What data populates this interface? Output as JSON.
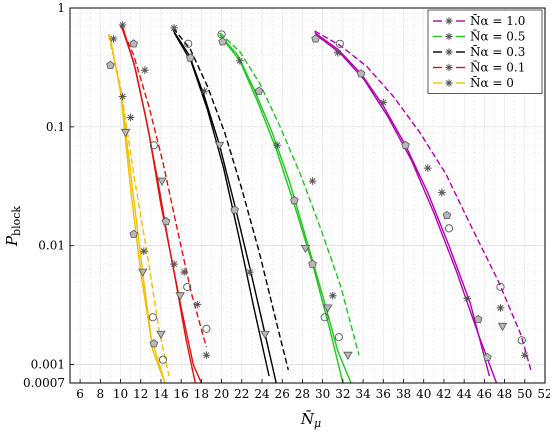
{
  "chart_data": {
    "type": "line",
    "xlabel": "N̄μ",
    "ylabel": "Pblock",
    "xscale": "linear",
    "yscale": "log",
    "xlim": [
      5,
      52
    ],
    "ylim": [
      0.0007,
      1
    ],
    "xticks": [
      "6",
      "8",
      "10",
      "12",
      "14",
      "16",
      "18",
      "20",
      "22",
      "24",
      "26",
      "28",
      "30",
      "32",
      "34",
      "36",
      "38",
      "40",
      "42",
      "44",
      "46",
      "48",
      "50",
      "52"
    ],
    "yticks": [
      "1",
      "0.1",
      "0.01",
      "0.001",
      "0.0007"
    ],
    "grid": true,
    "legend_position": "top-right",
    "legend": [
      {
        "label": "N̄α = 1.0",
        "color": "#b000b0"
      },
      {
        "label": "N̄α = 0.5",
        "color": "#22c422"
      },
      {
        "label": "N̄α = 0.3",
        "color": "#000000"
      },
      {
        "label": "N̄α = 0.1",
        "color": "#e01010"
      },
      {
        "label": "N̄α = 0",
        "color": "#f0c000"
      }
    ],
    "groups": [
      {
        "name": "N̄α = 0",
        "color": "#f0c000",
        "solid": [
          {
            "x": [
              8.9,
              10,
              11,
              12,
              13,
              14.4
            ],
            "y": [
              0.6,
              0.2,
              0.03,
              0.006,
              0.0017,
              0.0007
            ]
          },
          {
            "x": [
              9,
              10.1,
              11.3,
              12.3,
              13.2,
              14.4
            ],
            "y": [
              0.55,
              0.18,
              0.025,
              0.005,
              0.0013,
              0.0007
            ]
          }
        ],
        "dashed": [
          {
            "x": [
              8.8,
              10,
              11.3,
              12.6,
              13.8,
              14.8
            ],
            "y": [
              0.6,
              0.22,
              0.04,
              0.009,
              0.002,
              0.0008
            ]
          }
        ],
        "markers": [
          {
            "s": "square",
            "x": 9,
            "y": 0.33
          },
          {
            "s": "star",
            "x": 9.3,
            "y": 0.55
          },
          {
            "s": "star",
            "x": 10.2,
            "y": 0.18
          },
          {
            "s": "square",
            "x": 11.3,
            "y": 0.0125
          },
          {
            "s": "triangle",
            "x": 12.2,
            "y": 0.006
          },
          {
            "s": "star",
            "x": 12.3,
            "y": 0.009
          },
          {
            "s": "circle",
            "x": 13.2,
            "y": 0.0025
          },
          {
            "s": "square",
            "x": 13.3,
            "y": 0.0015
          },
          {
            "s": "triangle",
            "x": 14,
            "y": 0.0018
          },
          {
            "s": "circle",
            "x": 14.2,
            "y": 0.0011
          },
          {
            "s": "star",
            "x": 11,
            "y": 0.12
          },
          {
            "s": "triangle",
            "x": 10.5,
            "y": 0.09
          }
        ]
      },
      {
        "name": "N̄α = 0.1",
        "color": "#e01010",
        "solid": [
          {
            "x": [
              10.1,
              11.3,
              12.5,
              13.7,
              14.8,
              16,
              17.2,
              18
            ],
            "y": [
              0.7,
              0.35,
              0.12,
              0.035,
              0.01,
              0.003,
              0.001,
              0.0007
            ]
          },
          {
            "x": [
              10.2,
              11.5,
              12.8,
              14,
              15.3,
              16.5,
              17.4
            ],
            "y": [
              0.7,
              0.3,
              0.09,
              0.022,
              0.006,
              0.0016,
              0.0007
            ]
          }
        ],
        "dashed": [
          {
            "x": [
              10,
              11.3,
              12.8,
              14.2,
              15.6,
              17,
              18.5
            ],
            "y": [
              0.72,
              0.4,
              0.15,
              0.05,
              0.014,
              0.004,
              0.0014
            ]
          }
        ],
        "markers": [
          {
            "s": "star",
            "x": 10.2,
            "y": 0.72
          },
          {
            "s": "square",
            "x": 11.3,
            "y": 0.5
          },
          {
            "s": "star",
            "x": 12.4,
            "y": 0.3
          },
          {
            "s": "circle",
            "x": 13.3,
            "y": 0.07
          },
          {
            "s": "triangle",
            "x": 14.1,
            "y": 0.035
          },
          {
            "s": "square",
            "x": 14.5,
            "y": 0.016
          },
          {
            "s": "star",
            "x": 15.3,
            "y": 0.007
          },
          {
            "s": "triangle",
            "x": 15.9,
            "y": 0.0038
          },
          {
            "s": "star",
            "x": 16.3,
            "y": 0.006
          },
          {
            "s": "circle",
            "x": 16.6,
            "y": 0.0045
          },
          {
            "s": "star",
            "x": 17.6,
            "y": 0.0032
          },
          {
            "s": "circle",
            "x": 18.5,
            "y": 0.002
          },
          {
            "s": "star",
            "x": 18.5,
            "y": 0.0012
          }
        ]
      },
      {
        "name": "N̄α = 0.3",
        "color": "#000000",
        "solid": [
          {
            "x": [
              15.2,
              16.8,
              18.3,
              19.8,
              21.3,
              22.8,
              24.3,
              25.4
            ],
            "y": [
              0.65,
              0.4,
              0.18,
              0.07,
              0.022,
              0.0065,
              0.0018,
              0.0007
            ]
          },
          {
            "x": [
              15.3,
              17,
              18.6,
              20.2,
              21.7,
              23.2,
              24.7
            ],
            "y": [
              0.62,
              0.35,
              0.14,
              0.045,
              0.012,
              0.003,
              0.0008
            ]
          }
        ],
        "dashed": [
          {
            "x": [
              15.2,
              16.9,
              18.6,
              20.3,
              22,
              23.7,
              25.3,
              26.6
            ],
            "y": [
              0.68,
              0.45,
              0.22,
              0.09,
              0.03,
              0.009,
              0.0025,
              0.0009
            ]
          }
        ],
        "markers": [
          {
            "s": "star",
            "x": 15.3,
            "y": 0.68
          },
          {
            "s": "circle",
            "x": 16.7,
            "y": 0.5
          },
          {
            "s": "square",
            "x": 16.9,
            "y": 0.38
          },
          {
            "s": "star",
            "x": 18.3,
            "y": 0.2
          },
          {
            "s": "triangle",
            "x": 19.8,
            "y": 0.07
          },
          {
            "s": "square",
            "x": 21.3,
            "y": 0.02
          },
          {
            "s": "star",
            "x": 22.8,
            "y": 0.006
          },
          {
            "s": "triangle",
            "x": 24.3,
            "y": 0.0018
          }
        ]
      },
      {
        "name": "N̄α = 0.5",
        "color": "#22c422",
        "solid": [
          {
            "x": [
              19.8,
              21.6,
              23.3,
              25,
              26.7,
              28.3,
              30,
              31.5,
              32.8
            ],
            "y": [
              0.6,
              0.4,
              0.2,
              0.09,
              0.035,
              0.012,
              0.0038,
              0.0013,
              0.0007
            ]
          },
          {
            "x": [
              19.9,
              21.8,
              23.6,
              25.4,
              27.2,
              29,
              30.7,
              32
            ],
            "y": [
              0.58,
              0.36,
              0.16,
              0.065,
              0.022,
              0.007,
              0.002,
              0.0007
            ]
          }
        ],
        "dashed": [
          {
            "x": [
              19.8,
              21.8,
              23.8,
              25.8,
              27.8,
              29.8,
              31.8,
              33.6
            ],
            "y": [
              0.62,
              0.43,
              0.23,
              0.1,
              0.04,
              0.014,
              0.0045,
              0.0012
            ]
          }
        ],
        "markers": [
          {
            "s": "circle",
            "x": 20,
            "y": 0.6
          },
          {
            "s": "square",
            "x": 20.1,
            "y": 0.52
          },
          {
            "s": "star",
            "x": 21.8,
            "y": 0.36
          },
          {
            "s": "square",
            "x": 23.7,
            "y": 0.2
          },
          {
            "s": "star",
            "x": 25.5,
            "y": 0.07
          },
          {
            "s": "square",
            "x": 27.2,
            "y": 0.024
          },
          {
            "s": "star",
            "x": 29,
            "y": 0.035
          },
          {
            "s": "triangle",
            "x": 28.3,
            "y": 0.0095
          },
          {
            "s": "square",
            "x": 29,
            "y": 0.007
          },
          {
            "s": "triangle",
            "x": 30.5,
            "y": 0.003
          },
          {
            "s": "circle",
            "x": 30.2,
            "y": 0.0025
          },
          {
            "s": "star",
            "x": 31,
            "y": 0.0038
          },
          {
            "s": "circle",
            "x": 31.6,
            "y": 0.0017
          },
          {
            "s": "triangle",
            "x": 32.5,
            "y": 0.0012
          }
        ]
      },
      {
        "name": "N̄α = 1.0",
        "color": "#b000b0",
        "solid": [
          {
            "x": [
              29.2,
              31.5,
              33.8,
              36,
              38.2,
              40.4,
              42.5,
              44.6,
              46.5
            ],
            "y": [
              0.62,
              0.45,
              0.28,
              0.15,
              0.07,
              0.028,
              0.01,
              0.0033,
              0.0008
            ]
          },
          {
            "x": [
              29.3,
              31.7,
              34.1,
              36.5,
              38.8,
              41,
              43.2,
              45.4,
              47.2
            ],
            "y": [
              0.6,
              0.42,
              0.25,
              0.12,
              0.052,
              0.019,
              0.0062,
              0.0018,
              0.0007
            ]
          }
        ],
        "dashed": [
          {
            "x": [
              29.2,
              31.8,
              34.4,
              37,
              39.6,
              42.2,
              44.8,
              47.4,
              49.6,
              50.6
            ],
            "y": [
              0.64,
              0.48,
              0.32,
              0.18,
              0.09,
              0.04,
              0.014,
              0.005,
              0.0018,
              0.0009
            ]
          }
        ],
        "markers": [
          {
            "s": "square",
            "x": 29.3,
            "y": 0.55
          },
          {
            "s": "circle",
            "x": 31.7,
            "y": 0.5
          },
          {
            "s": "star",
            "x": 31.5,
            "y": 0.42
          },
          {
            "s": "square",
            "x": 33.8,
            "y": 0.28
          },
          {
            "s": "star",
            "x": 36,
            "y": 0.16
          },
          {
            "s": "square",
            "x": 38.2,
            "y": 0.07
          },
          {
            "s": "star",
            "x": 40.4,
            "y": 0.045
          },
          {
            "s": "square",
            "x": 42.3,
            "y": 0.018
          },
          {
            "s": "star",
            "x": 41.8,
            "y": 0.028
          },
          {
            "s": "circle",
            "x": 42.5,
            "y": 0.014
          },
          {
            "s": "star",
            "x": 44.3,
            "y": 0.0036
          },
          {
            "s": "square",
            "x": 45.4,
            "y": 0.0024
          },
          {
            "s": "circle",
            "x": 47.6,
            "y": 0.0045
          },
          {
            "s": "star",
            "x": 47.6,
            "y": 0.003
          },
          {
            "s": "triangle",
            "x": 47.8,
            "y": 0.0021
          },
          {
            "s": "square",
            "x": 46.3,
            "y": 0.00115
          },
          {
            "s": "circle",
            "x": 49.7,
            "y": 0.0016
          },
          {
            "s": "star",
            "x": 50,
            "y": 0.0012
          }
        ]
      }
    ]
  }
}
